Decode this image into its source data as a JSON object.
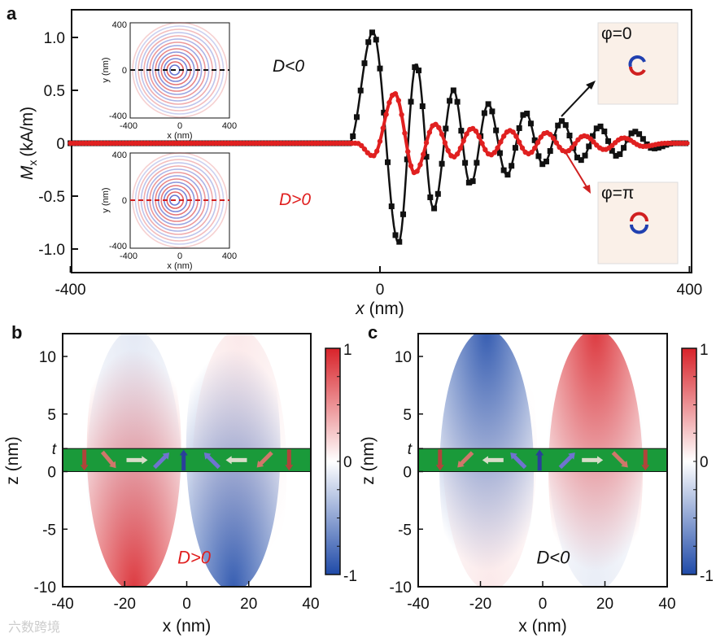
{
  "chart_data": [
    {
      "panel": "a",
      "type": "line",
      "xlabel": "x (nm)",
      "ylabel": "M_x (kA/m)",
      "ylabel_main": "M",
      "ylabel_sub": "x",
      "ylabel_unit": "(kA/m)",
      "xlabel_var": "x",
      "xlabel_unit": "(nm)",
      "xlim": [
        -400,
        400
      ],
      "ylim": [
        -1.15,
        1.25
      ],
      "xticks": [
        "-400",
        "0",
        "400"
      ],
      "yticks": [
        "1.0",
        "0.5",
        "0",
        "-0.5",
        "-1.0"
      ],
      "yticks_values": [
        1.0,
        0.5,
        0,
        -0.5,
        -1.0
      ],
      "series": [
        {
          "name": "D<0",
          "color": "#111111",
          "marker": "square",
          "extrema": [
            [
              -400,
              0
            ],
            [
              -40,
              0
            ],
            [
              -9,
              1.05
            ],
            [
              24,
              -0.94
            ],
            [
              47,
              0.75
            ],
            [
              69,
              -0.62
            ],
            [
              95,
              0.5
            ],
            [
              117,
              -0.39
            ],
            [
              140,
              0.37
            ],
            [
              164,
              -0.3
            ],
            [
              188,
              0.29
            ],
            [
              211,
              -0.2
            ],
            [
              235,
              0.21
            ],
            [
              259,
              -0.16
            ],
            [
              284,
              0.16
            ],
            [
              306,
              -0.12
            ],
            [
              329,
              0.11
            ],
            [
              353,
              -0.05
            ],
            [
              380,
              0
            ],
            [
              400,
              0
            ]
          ]
        },
        {
          "name": "D>0",
          "color": "#e02020",
          "marker": "circle",
          "extrema": [
            [
              -400,
              0
            ],
            [
              -30,
              0
            ],
            [
              -9,
              -0.12
            ],
            [
              19,
              0.47
            ],
            [
              45,
              -0.28
            ],
            [
              71,
              0.18
            ],
            [
              95,
              -0.13
            ],
            [
              119,
              0.14
            ],
            [
              143,
              -0.11
            ],
            [
              168,
              0.12
            ],
            [
              192,
              -0.1
            ],
            [
              215,
              0.1
            ],
            [
              240,
              -0.08
            ],
            [
              264,
              0.07
            ],
            [
              290,
              -0.06
            ],
            [
              315,
              0.05
            ],
            [
              340,
              -0.03
            ],
            [
              370,
              0
            ],
            [
              400,
              0
            ]
          ]
        }
      ],
      "annotations": {
        "d_neg": "D<0",
        "d_pos": "D>0",
        "phi0": "φ=0",
        "phipi": "φ=π"
      },
      "insets": {
        "ticks": [
          "400",
          "0",
          "-400"
        ],
        "xticks": [
          "-400",
          "0",
          "400"
        ],
        "xlabel": "x (nm)",
        "ylabel": "y (nm)"
      }
    },
    {
      "panel": "b",
      "type": "heatmap",
      "xlabel": "x (nm)",
      "ylabel": "z (nm)",
      "xlim": [
        -40,
        40
      ],
      "ylim": [
        -10,
        12
      ],
      "xticks": [
        "-40",
        "-20",
        "0",
        "20",
        "40"
      ],
      "xticks_values": [
        -40,
        -20,
        0,
        20,
        40
      ],
      "yticks": [
        "10",
        "5",
        "t",
        "0",
        "-5",
        "-10"
      ],
      "yticks_values": [
        10,
        5,
        2,
        0,
        -5,
        -10
      ],
      "layer_thickness": 2,
      "colorbar": {
        "min": "-1",
        "mid": "0",
        "max": "1"
      },
      "label": "D>0",
      "lobes": [
        {
          "x": -17,
          "side": "top",
          "value": 0.9
        },
        {
          "x": 15,
          "side": "top",
          "value": -0.9
        },
        {
          "x": -17,
          "side": "bottom",
          "value": -0.12
        },
        {
          "x": 17,
          "side": "bottom",
          "value": 0.1
        }
      ],
      "spins_deg": [
        -90,
        -50,
        0,
        45,
        90,
        135,
        180,
        225,
        270
      ]
    },
    {
      "panel": "c",
      "type": "heatmap",
      "xlabel": "x (nm)",
      "ylabel": "z (nm)",
      "xlim": [
        -40,
        40
      ],
      "ylim": [
        -10,
        12
      ],
      "xticks": [
        "-40",
        "-20",
        "0",
        "20",
        "40"
      ],
      "xticks_values": [
        -40,
        -20,
        0,
        20,
        40
      ],
      "yticks": [
        "10",
        "5",
        "t",
        "0",
        "-5",
        "-10"
      ],
      "yticks_values": [
        10,
        5,
        2,
        0,
        -5,
        -10
      ],
      "layer_thickness": 2,
      "colorbar": {
        "min": "-1",
        "mid": "0",
        "max": "1"
      },
      "label": "D<0",
      "lobes": [
        {
          "x": -17,
          "side": "top",
          "value": 0.1
        },
        {
          "x": 17,
          "side": "top",
          "value": -0.1
        },
        {
          "x": -18,
          "side": "bottom",
          "value": -0.9
        },
        {
          "x": 17,
          "side": "bottom",
          "value": 0.9
        }
      ],
      "spins_deg": [
        -90,
        225,
        180,
        135,
        90,
        45,
        0,
        -45,
        -90
      ]
    }
  ],
  "panel_labels": {
    "a": "a",
    "b": "b",
    "c": "c"
  },
  "watermark": "六数跨境"
}
